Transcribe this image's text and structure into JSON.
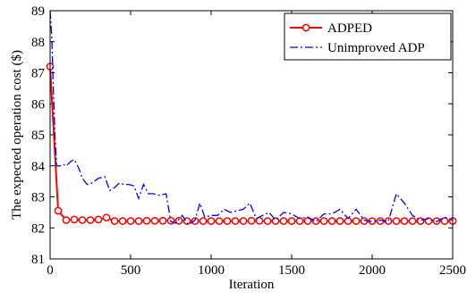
{
  "chart_data": {
    "type": "line",
    "xlabel": "Iteration",
    "ylabel": "The expected operation cost ($)",
    "xlim": [
      0,
      2500
    ],
    "ylim": [
      81,
      89
    ],
    "xticks": [
      0,
      500,
      1000,
      1500,
      2000,
      2500
    ],
    "yticks": [
      81,
      82,
      83,
      84,
      85,
      86,
      87,
      88,
      89
    ],
    "grid": false,
    "legend_position": "top-right",
    "series": [
      {
        "name": "ADPED",
        "color": "#ff0000",
        "line_style": "solid",
        "marker": "circle",
        "x": [
          0,
          50,
          100,
          150,
          200,
          250,
          300,
          350,
          400,
          450,
          500,
          550,
          600,
          650,
          700,
          750,
          800,
          850,
          900,
          950,
          1000,
          1050,
          1100,
          1150,
          1200,
          1250,
          1300,
          1350,
          1400,
          1450,
          1500,
          1550,
          1600,
          1650,
          1700,
          1750,
          1800,
          1850,
          1900,
          1950,
          2000,
          2050,
          2100,
          2150,
          2200,
          2250,
          2300,
          2350,
          2400,
          2450,
          2500
        ],
        "y": [
          87.2,
          82.55,
          82.25,
          82.27,
          82.25,
          82.25,
          82.27,
          82.33,
          82.22,
          82.22,
          82.22,
          82.22,
          82.23,
          82.23,
          82.23,
          82.23,
          82.23,
          82.22,
          82.22,
          82.22,
          82.22,
          82.22,
          82.22,
          82.22,
          82.22,
          82.23,
          82.23,
          82.22,
          82.22,
          82.22,
          82.22,
          82.22,
          82.22,
          82.22,
          82.22,
          82.22,
          82.22,
          82.22,
          82.22,
          82.22,
          82.22,
          82.22,
          82.22,
          82.22,
          82.22,
          82.22,
          82.22,
          82.22,
          82.22,
          82.22,
          82.22
        ]
      },
      {
        "name": "Unimproved ADP",
        "color": "#0000ff",
        "line_style": "dashdot",
        "marker": "none",
        "x": [
          0,
          10,
          20,
          30,
          40,
          60,
          80,
          100,
          130,
          150,
          180,
          200,
          230,
          260,
          300,
          340,
          370,
          400,
          430,
          460,
          490,
          520,
          550,
          580,
          610,
          640,
          680,
          720,
          750,
          780,
          820,
          860,
          900,
          930,
          960,
          1000,
          1040,
          1080,
          1120,
          1160,
          1200,
          1240,
          1280,
          1320,
          1360,
          1400,
          1450,
          1500,
          1550,
          1600,
          1650,
          1700,
          1750,
          1800,
          1850,
          1900,
          1950,
          2000,
          2050,
          2100,
          2150,
          2200,
          2250,
          2300,
          2350,
          2400,
          2450,
          2500
        ],
        "y": [
          89.0,
          88.2,
          86.5,
          85.0,
          84.0,
          84.0,
          84.05,
          84.0,
          84.15,
          84.2,
          83.9,
          83.6,
          83.4,
          83.45,
          83.6,
          83.65,
          83.2,
          83.3,
          83.45,
          83.4,
          83.4,
          83.35,
          82.95,
          83.4,
          83.1,
          83.1,
          83.05,
          83.1,
          82.2,
          82.15,
          82.4,
          82.1,
          82.25,
          82.8,
          82.35,
          82.4,
          82.4,
          82.6,
          82.5,
          82.55,
          82.6,
          82.8,
          82.3,
          82.4,
          82.5,
          82.25,
          82.5,
          82.45,
          82.3,
          82.35,
          82.2,
          82.45,
          82.45,
          82.6,
          82.3,
          82.6,
          82.25,
          82.2,
          82.25,
          82.2,
          83.1,
          82.8,
          82.4,
          82.25,
          82.3,
          82.2,
          82.35,
          82.25
        ]
      }
    ]
  }
}
